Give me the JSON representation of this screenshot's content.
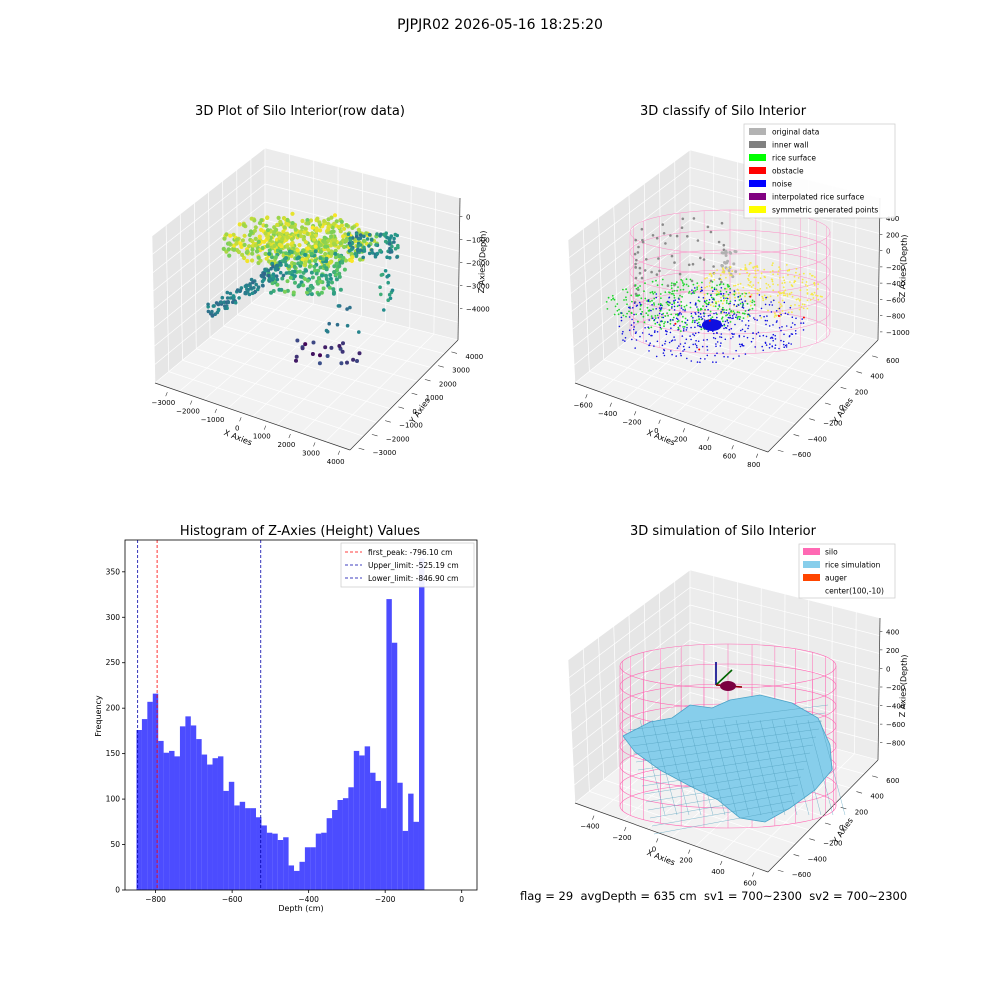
{
  "suptitle": "PJPJR02 2026-05-16 18:25:20",
  "footer": "flag = 29  avgDepth = 635 cm  sv1 = 700~2300  sv2 = 700~2300",
  "chart_data": [
    {
      "type": "scatter",
      "title": "3D Plot of Silo Interior(row data)",
      "xlabel": "X Axies",
      "ylabel": "Y Axies",
      "zlabel": "Z Axies (Depth)",
      "xticks": [
        "−3000",
        "−2000",
        "−1000",
        "0",
        "1000",
        "2000",
        "3000",
        "4000"
      ],
      "yticks": [
        "−3000",
        "−2000",
        "−1000",
        "0",
        "1000",
        "2000",
        "3000",
        "4000"
      ],
      "zticks": [
        "0",
        "−1000",
        "−2000",
        "−3000",
        "−4000"
      ],
      "colormap": [
        "#440154",
        "#3b528b",
        "#21918c",
        "#5ec962",
        "#fde725"
      ]
    },
    {
      "type": "scatter",
      "title": "3D classify of Silo Interior",
      "xlabel": "X Axies",
      "ylabel": "Y Axies",
      "zlabel": "Z Axies (Depth)",
      "xticks": [
        "−600",
        "−400",
        "−200",
        "0",
        "200",
        "400",
        "600",
        "800"
      ],
      "yticks": [
        "−600",
        "−400",
        "−200",
        "0",
        "200",
        "400",
        "600"
      ],
      "zticks": [
        "400",
        "200",
        "0",
        "−200",
        "−400",
        "−600",
        "−800",
        "−1000"
      ],
      "legend": [
        {
          "name": "original data",
          "color": "#b3b3b3"
        },
        {
          "name": "inner wall",
          "color": "#808080"
        },
        {
          "name": "rice surface",
          "color": "#00ff00"
        },
        {
          "name": "obstacle",
          "color": "#ff0000"
        },
        {
          "name": "noise",
          "color": "#0000ff"
        },
        {
          "name": "interpolated rice surface",
          "color": "#800080"
        },
        {
          "name": "symmetric generated points",
          "color": "#ffff00"
        }
      ],
      "legend_position": "top-right"
    },
    {
      "type": "bar",
      "title": "Histogram of Z-Axies (Height) Values",
      "xlabel": "Depth (cm)",
      "ylabel": "Frequency",
      "xlim": [
        -880,
        40
      ],
      "ylim": [
        0,
        385
      ],
      "xticks": [
        {
          "v": -800,
          "t": "−800"
        },
        {
          "v": -600,
          "t": "−600"
        },
        {
          "v": -400,
          "t": "−400"
        },
        {
          "v": -200,
          "t": "−200"
        },
        {
          "v": 0,
          "t": "0"
        }
      ],
      "yticks": [
        0,
        50,
        100,
        150,
        200,
        250,
        300,
        350
      ],
      "bin_start": -850,
      "bin_width": 14.2,
      "color": "#0000ff",
      "values": [
        176,
        188,
        207,
        216,
        164,
        151,
        153,
        147,
        180,
        191,
        181,
        166,
        149,
        138,
        145,
        147,
        109,
        119,
        93,
        97,
        90,
        90,
        80,
        71,
        63,
        62,
        55,
        58,
        27,
        21,
        31,
        47,
        47,
        62,
        63,
        79,
        88,
        99,
        101,
        113,
        153,
        148,
        158,
        129,
        120,
        90,
        320,
        272,
        118,
        65,
        106,
        75,
        365
      ],
      "vlines": [
        {
          "label": "first_peak: -796.10 cm",
          "x": -796.1,
          "color": "#ff0000"
        },
        {
          "label": "Upper_limit: -525.19 cm",
          "x": -525.19,
          "color": "#0000aa"
        },
        {
          "label": "Lower_limit: -846.90 cm",
          "x": -846.9,
          "color": "#0000aa"
        }
      ],
      "legend_position": "top-right"
    },
    {
      "type": "surface",
      "title": "3D simulation of Silo Interior",
      "xlabel": "X Axies",
      "ylabel": "Y Axies",
      "zlabel": "Z Axies (Depth)",
      "xticks": [
        "−400",
        "−200",
        "0",
        "200",
        "400",
        "600"
      ],
      "yticks": [
        "−600",
        "−400",
        "−200",
        "0",
        "200",
        "400",
        "600"
      ],
      "zticks": [
        "400",
        "200",
        "0",
        "−200",
        "−400",
        "−600",
        "−800"
      ],
      "legend": [
        {
          "name": "silo",
          "color": "#ff69b4"
        },
        {
          "name": "rice simulation",
          "color": "#87ceeb"
        },
        {
          "name": "auger",
          "color": "#ff4500"
        },
        {
          "name": "center(100,-10)",
          "color": ""
        }
      ],
      "legend_position": "top-right"
    }
  ]
}
